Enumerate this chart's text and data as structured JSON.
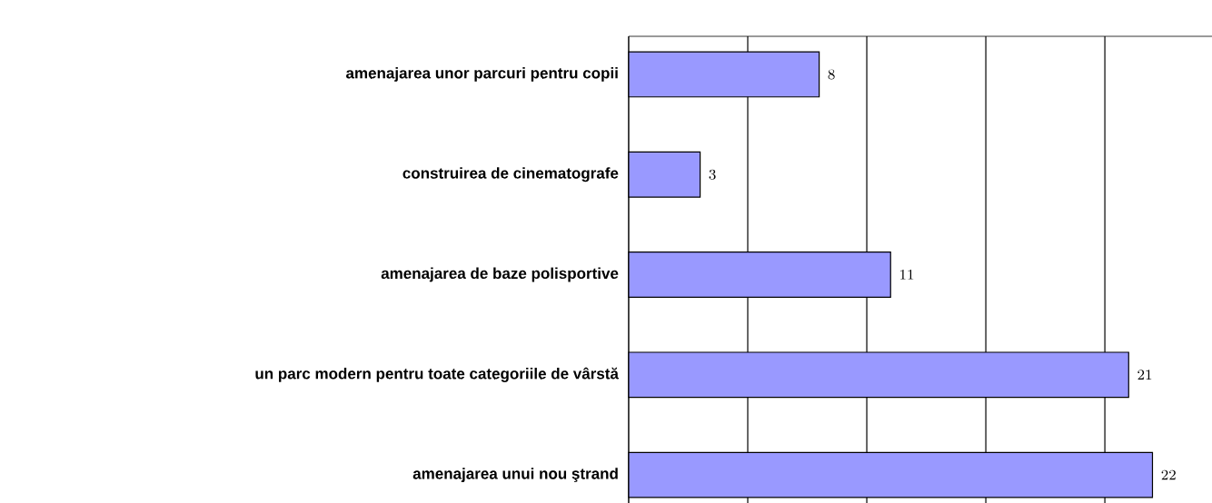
{
  "chart_data": {
    "type": "bar",
    "orientation": "horizontal",
    "categories": [
      "amenajarea unor parcuri pentru copii",
      "construirea de cinematografe",
      "amenajarea de baze polisportive",
      "un parc modern pentru toate categoriile de vârstă",
      "amenajarea unui nou ştrand"
    ],
    "values": [
      8,
      3,
      11,
      21,
      22
    ],
    "color": "#9999ff",
    "data_labels": true,
    "grid": "x",
    "tick_labels": "y",
    "xlim": [
      0,
      24.5
    ],
    "xticks": [
      {
        "value": 0,
        "label": null
      },
      {
        "value": 5,
        "label": null
      },
      {
        "value": 10,
        "label": null
      },
      {
        "value": 15,
        "label": null
      },
      {
        "value": 20,
        "label": null
      }
    ]
  }
}
